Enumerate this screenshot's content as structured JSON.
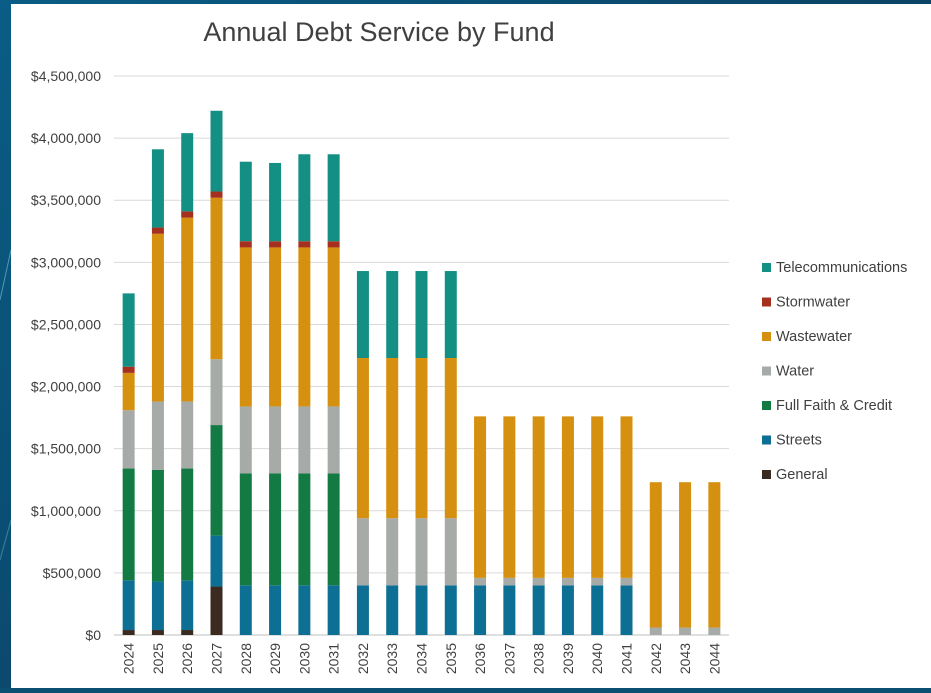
{
  "chart_data": {
    "type": "bar",
    "stacked": true,
    "title": "Annual Debt Service by Fund",
    "xlabel": "",
    "ylabel": "",
    "ylim": [
      0,
      4500000
    ],
    "yticks": [
      0,
      500000,
      1000000,
      1500000,
      2000000,
      2500000,
      3000000,
      3500000,
      4000000,
      4500000
    ],
    "ytick_labels": [
      "$0",
      "$500,000",
      "$1,000,000",
      "$1,500,000",
      "$2,000,000",
      "$2,500,000",
      "$3,000,000",
      "$3,500,000",
      "$4,000,000",
      "$4,500,000"
    ],
    "grid": true,
    "legend_position": "right",
    "categories": [
      "2024",
      "2025",
      "2026",
      "2027",
      "2028",
      "2029",
      "2030",
      "2031",
      "2032",
      "2033",
      "2034",
      "2035",
      "2036",
      "2037",
      "2038",
      "2039",
      "2040",
      "2041",
      "2042",
      "2043",
      "2044"
    ],
    "series": [
      {
        "name": "General",
        "color": "#3b2a1f",
        "values": [
          40000,
          40000,
          40000,
          390000,
          0,
          0,
          0,
          0,
          0,
          0,
          0,
          0,
          0,
          0,
          0,
          0,
          0,
          0,
          0,
          0,
          0
        ]
      },
      {
        "name": "Streets",
        "color": "#0d6f93",
        "values": [
          400000,
          390000,
          400000,
          410000,
          400000,
          400000,
          400000,
          400000,
          400000,
          400000,
          400000,
          400000,
          400000,
          400000,
          400000,
          400000,
          400000,
          400000,
          0,
          0,
          0
        ]
      },
      {
        "name": "Full Faith & Credit",
        "color": "#137a44",
        "values": [
          900000,
          900000,
          900000,
          890000,
          900000,
          900000,
          900000,
          900000,
          0,
          0,
          0,
          0,
          0,
          0,
          0,
          0,
          0,
          0,
          0,
          0,
          0
        ]
      },
      {
        "name": "Water",
        "color": "#a6aba8",
        "values": [
          470000,
          550000,
          540000,
          530000,
          540000,
          540000,
          540000,
          540000,
          540000,
          540000,
          540000,
          540000,
          60000,
          60000,
          60000,
          60000,
          60000,
          60000,
          60000,
          60000,
          60000
        ]
      },
      {
        "name": "Wastewater",
        "color": "#d4900e",
        "values": [
          300000,
          1350000,
          1480000,
          1300000,
          1280000,
          1280000,
          1280000,
          1280000,
          1290000,
          1290000,
          1290000,
          1290000,
          1300000,
          1300000,
          1300000,
          1300000,
          1300000,
          1300000,
          1170000,
          1170000,
          1170000
        ]
      },
      {
        "name": "Stormwater",
        "color": "#a63020",
        "values": [
          50000,
          50000,
          50000,
          50000,
          50000,
          50000,
          50000,
          50000,
          0,
          0,
          0,
          0,
          0,
          0,
          0,
          0,
          0,
          0,
          0,
          0,
          0
        ]
      },
      {
        "name": "Telecommunications",
        "color": "#138f84",
        "values": [
          590000,
          630000,
          630000,
          650000,
          640000,
          630000,
          700000,
          700000,
          700000,
          700000,
          700000,
          700000,
          0,
          0,
          0,
          0,
          0,
          0,
          0,
          0,
          0
        ]
      }
    ],
    "legend_order": [
      "Telecommunications",
      "Stormwater",
      "Wastewater",
      "Water",
      "Full Faith & Credit",
      "Streets",
      "General"
    ]
  }
}
